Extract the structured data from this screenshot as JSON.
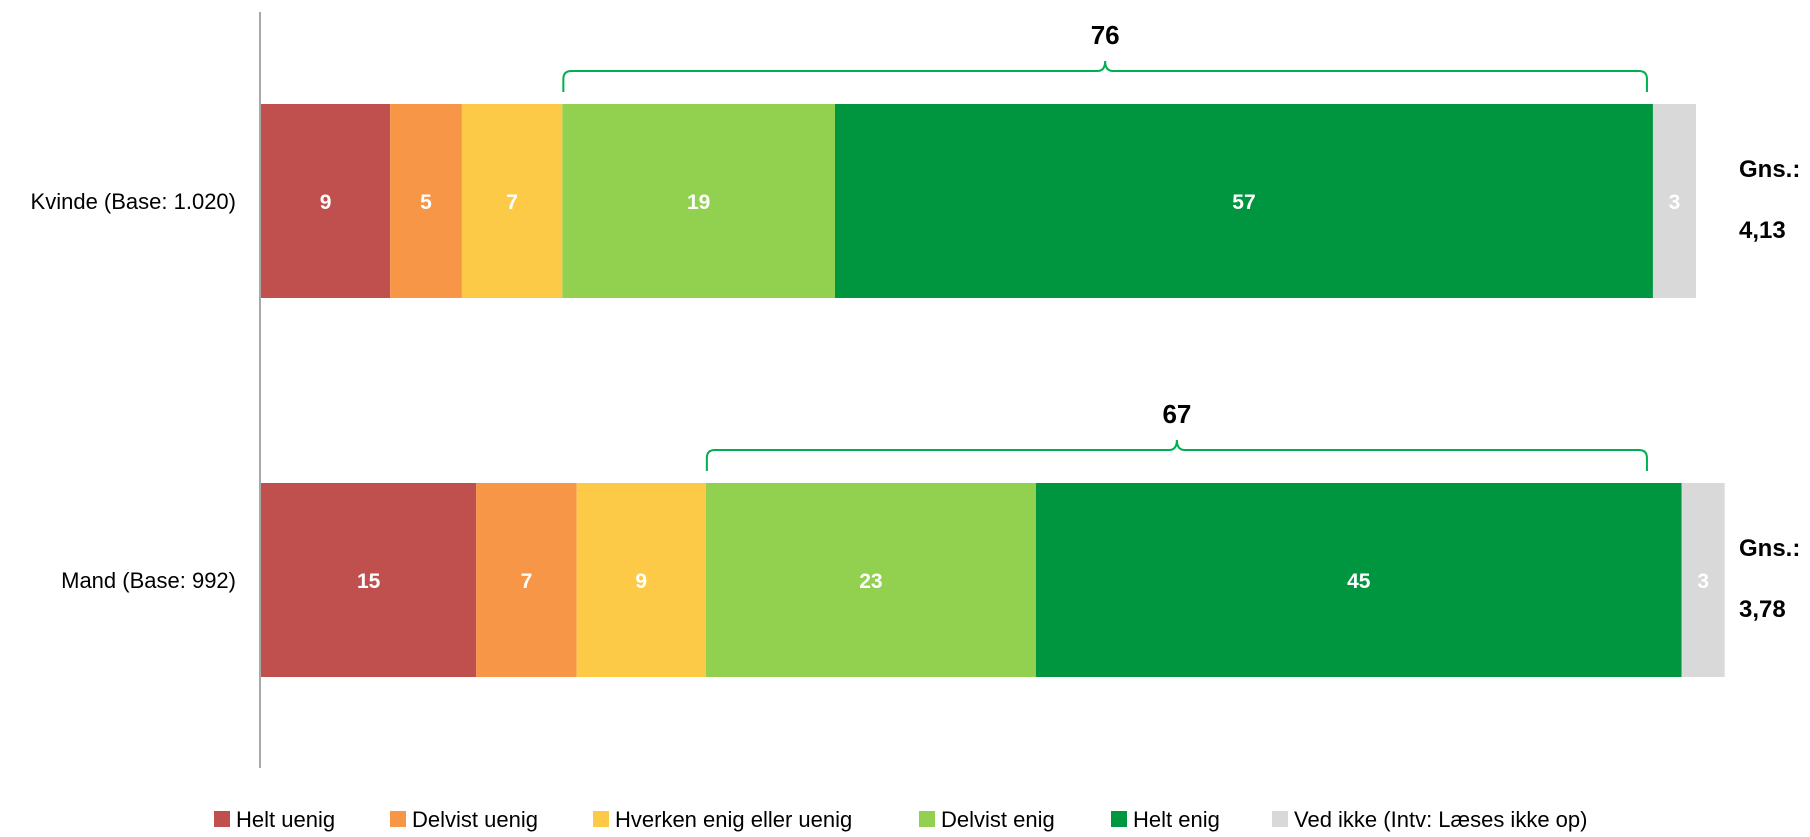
{
  "chart_data": {
    "type": "bar",
    "orientation": "horizontal",
    "stacked": true,
    "categories": [
      "Kvinde (Base: 1.020)",
      "Mand (Base: 992)"
    ],
    "series": [
      {
        "name": "Helt uenig",
        "color": "#c0504d",
        "values": [
          9,
          15
        ]
      },
      {
        "name": "Delvist uenig",
        "color": "#f79646",
        "values": [
          5,
          7
        ]
      },
      {
        "name": "Hverken enig eller uenig",
        "color": "#fdca47",
        "values": [
          7,
          9
        ]
      },
      {
        "name": "Delvist enig",
        "color": "#92d050",
        "values": [
          19,
          23
        ]
      },
      {
        "name": "Helt enig",
        "color": "#00953f",
        "values": [
          57,
          45
        ]
      },
      {
        "name": "Ved ikke (Intv: Læses ikke op)",
        "color": "#d9d9d9",
        "values": [
          3,
          3
        ]
      }
    ],
    "segment_labels": [
      [
        "9",
        "5",
        "7",
        "19",
        "57",
        "3"
      ],
      [
        "15",
        "7",
        "9",
        "23",
        "45",
        "3"
      ]
    ],
    "agree_totals": [
      {
        "label": "76",
        "value": 76
      },
      {
        "label": "67",
        "value": 67
      }
    ],
    "averages": [
      {
        "prefix": "Gns.:",
        "value": "4,13"
      },
      {
        "prefix": "Gns.:",
        "value": "3,78"
      }
    ],
    "bracket_color": "#00b050",
    "legend_position": "bottom",
    "grid": false
  }
}
